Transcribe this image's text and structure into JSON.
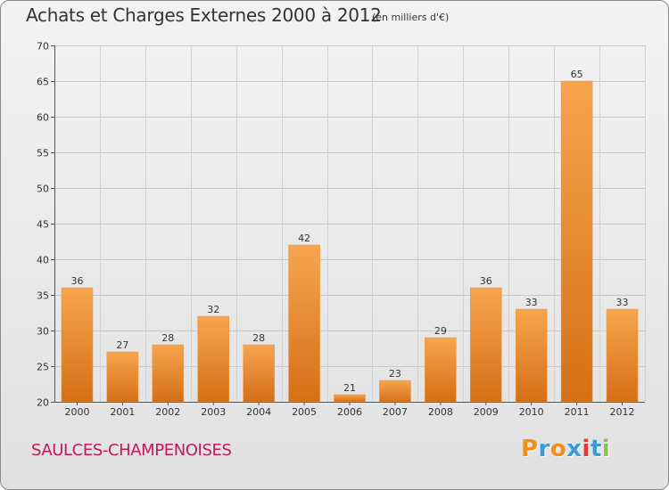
{
  "header": {
    "title": "Achats et Charges Externes 2000 à 2012",
    "subtitle": "(en milliers d'€)"
  },
  "footer": {
    "location": "SAULCES-CHAMPENOISES",
    "logo_letters": [
      "P",
      "r",
      "o",
      "x",
      "i",
      "t",
      "i"
    ]
  },
  "colors": {
    "bar_top": "#f7a54f",
    "bar_bottom": "#d56f17",
    "location_text": "#c2185b",
    "logo_letter_colors": [
      "#f28e1c",
      "#3a9bd5",
      "#f28e1c",
      "#3a9bd5",
      "#e53935",
      "#3a9bd5",
      "#8bc34a"
    ]
  },
  "chart_data": {
    "type": "bar",
    "title": "Achats et Charges Externes 2000 à 2012",
    "subtitle": "(en milliers d'€)",
    "categories": [
      "2000",
      "2001",
      "2002",
      "2003",
      "2004",
      "2005",
      "2006",
      "2007",
      "2008",
      "2009",
      "2010",
      "2011",
      "2012"
    ],
    "values": [
      36,
      27,
      28,
      32,
      28,
      42,
      21,
      23,
      29,
      36,
      33,
      65,
      33
    ],
    "data_labels": [
      "36",
      "27",
      "28",
      "32",
      "28",
      "42",
      "21",
      "23",
      "29",
      "36",
      "33",
      "65",
      "33"
    ],
    "xlabel": "",
    "ylabel": "",
    "ylim": [
      20,
      70
    ],
    "yticks": [
      20,
      25,
      30,
      35,
      40,
      45,
      50,
      55,
      60,
      65,
      70
    ],
    "grid": true,
    "legend": "none"
  }
}
